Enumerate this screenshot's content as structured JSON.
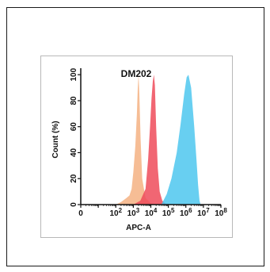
{
  "chart_data": {
    "type": "area",
    "title": "DM202",
    "xlabel": "APC-A",
    "ylabel": "Count  (%)",
    "x_scale": "log",
    "xlim": [
      1,
      100000000
    ],
    "ylim": [
      0,
      105
    ],
    "x_tick_labels": [
      {
        "value": 1,
        "base": "0",
        "exp": ""
      },
      {
        "value": 100,
        "base": "10",
        "exp": "2"
      },
      {
        "value": 1000,
        "base": "10",
        "exp": "3"
      },
      {
        "value": 10000,
        "base": "10",
        "exp": "4"
      },
      {
        "value": 100000,
        "base": "10",
        "exp": "5"
      },
      {
        "value": 1000000,
        "base": "10",
        "exp": "6"
      },
      {
        "value": 10000000,
        "base": "10",
        "exp": "7"
      },
      {
        "value": 100000000,
        "base": "10",
        "exp": "8"
      }
    ],
    "y_ticks": [
      0,
      20,
      40,
      60,
      80,
      100
    ],
    "series": [
      {
        "color": "#f4b183",
        "points": [
          [
            100,
            0
          ],
          [
            200,
            2
          ],
          [
            400,
            5
          ],
          [
            600,
            7
          ],
          [
            800,
            12
          ],
          [
            1000,
            25
          ],
          [
            1300,
            45
          ],
          [
            1600,
            70
          ],
          [
            1800,
            90
          ],
          [
            2000,
            100
          ],
          [
            2200,
            85
          ],
          [
            2600,
            50
          ],
          [
            3200,
            20
          ],
          [
            5000,
            5
          ],
          [
            10000,
            1
          ],
          [
            20000,
            0
          ]
        ]
      },
      {
        "color": "#ef4b5b",
        "points": [
          [
            1000,
            0
          ],
          [
            2500,
            3
          ],
          [
            5000,
            12
          ],
          [
            7000,
            35
          ],
          [
            9000,
            60
          ],
          [
            11000,
            82
          ],
          [
            13000,
            95
          ],
          [
            15000,
            100
          ],
          [
            17000,
            92
          ],
          [
            20000,
            60
          ],
          [
            25000,
            28
          ],
          [
            32000,
            10
          ],
          [
            45000,
            3
          ],
          [
            80000,
            0
          ]
        ]
      },
      {
        "color": "#4ec7ee",
        "points": [
          [
            40000,
            0
          ],
          [
            80000,
            8
          ],
          [
            150000,
            20
          ],
          [
            300000,
            40
          ],
          [
            500000,
            62
          ],
          [
            800000,
            85
          ],
          [
            1100000,
            98
          ],
          [
            1400000,
            100
          ],
          [
            2000000,
            90
          ],
          [
            3000000,
            60
          ],
          [
            4000000,
            35
          ],
          [
            5000000,
            15
          ],
          [
            6000000,
            3
          ],
          [
            7000000,
            0
          ]
        ]
      }
    ]
  }
}
